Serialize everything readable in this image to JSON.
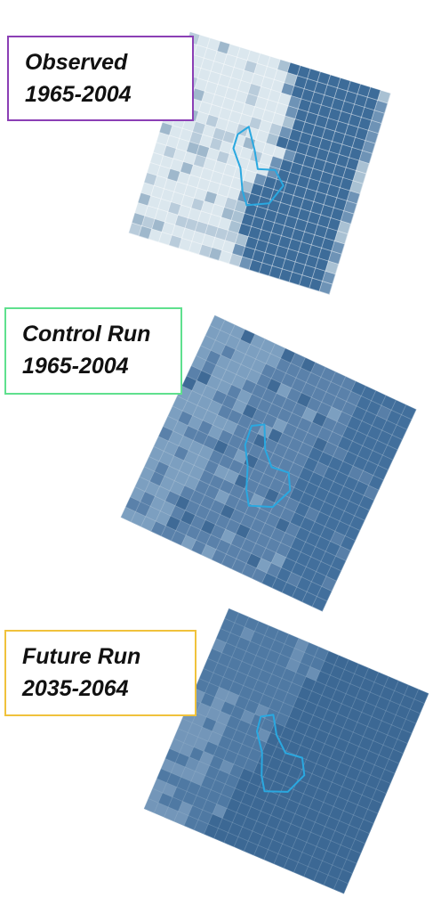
{
  "panels": [
    {
      "label_lines": [
        "Observed",
        "1965-2004"
      ]
    },
    {
      "label_lines": [
        "Control Run",
        "1965-2004"
      ]
    },
    {
      "label_lines": [
        "Future Run",
        "2035-2064"
      ]
    }
  ]
}
